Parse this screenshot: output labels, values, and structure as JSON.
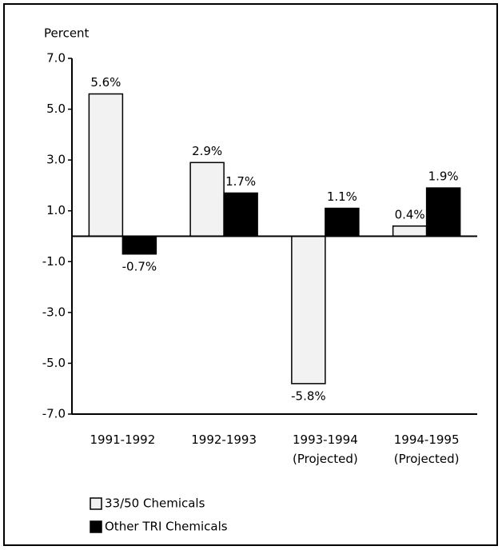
{
  "chart_data": {
    "type": "bar",
    "y_label": "Percent",
    "categories": [
      "1991-1992",
      "1992-1993",
      "1993-1994\n(Projected)",
      "1994-1995\n(Projected)"
    ],
    "series": [
      {
        "name": "33/50 Chemicals",
        "color": "#f2f2f2",
        "values": [
          5.6,
          2.9,
          -5.8,
          0.4
        ],
        "value_labels": [
          "5.6%",
          "2.9%",
          "-5.8%",
          "0.4%"
        ]
      },
      {
        "name": "Other TRI Chemicals",
        "color": "#000000",
        "values": [
          -0.7,
          1.7,
          1.1,
          1.9
        ],
        "value_labels": [
          "-0.7%",
          "1.7%",
          "1.1%",
          "1.9%"
        ]
      }
    ],
    "ylim": [
      -7,
      7
    ],
    "yticks": [
      {
        "value": -7,
        "label": "-7.0"
      },
      {
        "value": -5,
        "label": "-5.0"
      },
      {
        "value": -3,
        "label": "-3.0"
      },
      {
        "value": -1,
        "label": "-1.0"
      },
      {
        "value": 1,
        "label": "1.0"
      },
      {
        "value": 3,
        "label": "3.0"
      },
      {
        "value": 5,
        "label": "5.0"
      },
      {
        "value": 7,
        "label": "7.0"
      }
    ],
    "grid": false,
    "legend": "bottom-left"
  }
}
